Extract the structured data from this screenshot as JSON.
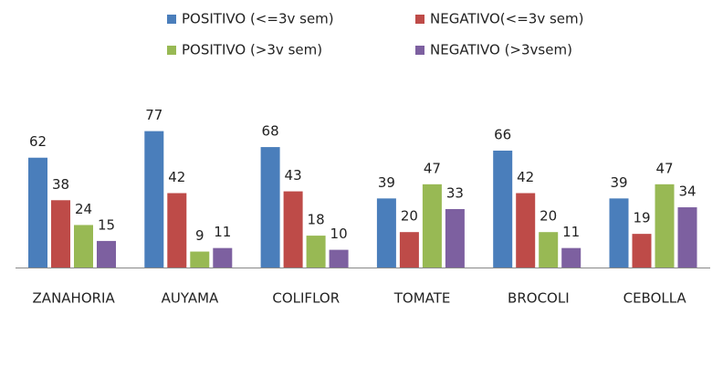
{
  "chart_data": {
    "type": "bar",
    "categories": [
      "ZANAHORIA",
      "AUYAMA",
      "COLIFLOR",
      "TOMATE",
      "BROCOLI",
      "CEBOLLA"
    ],
    "series": [
      {
        "name": "POSITIVO (<=3v sem)",
        "color": "#4a7ebb",
        "values": [
          62,
          77,
          68,
          39,
          66,
          39
        ]
      },
      {
        "name": "NEGATIVO(<=3v sem)",
        "color": "#be4b48",
        "values": [
          38,
          42,
          43,
          20,
          42,
          19
        ]
      },
      {
        "name": "POSITIVO (>3v sem)",
        "color": "#98b954",
        "values": [
          24,
          9,
          18,
          47,
          20,
          47
        ]
      },
      {
        "name": "NEGATIVO (>3vsem)",
        "color": "#7d60a0",
        "values": [
          15,
          11,
          10,
          33,
          11,
          34
        ]
      }
    ],
    "legend": "top",
    "data_labels": true
  }
}
